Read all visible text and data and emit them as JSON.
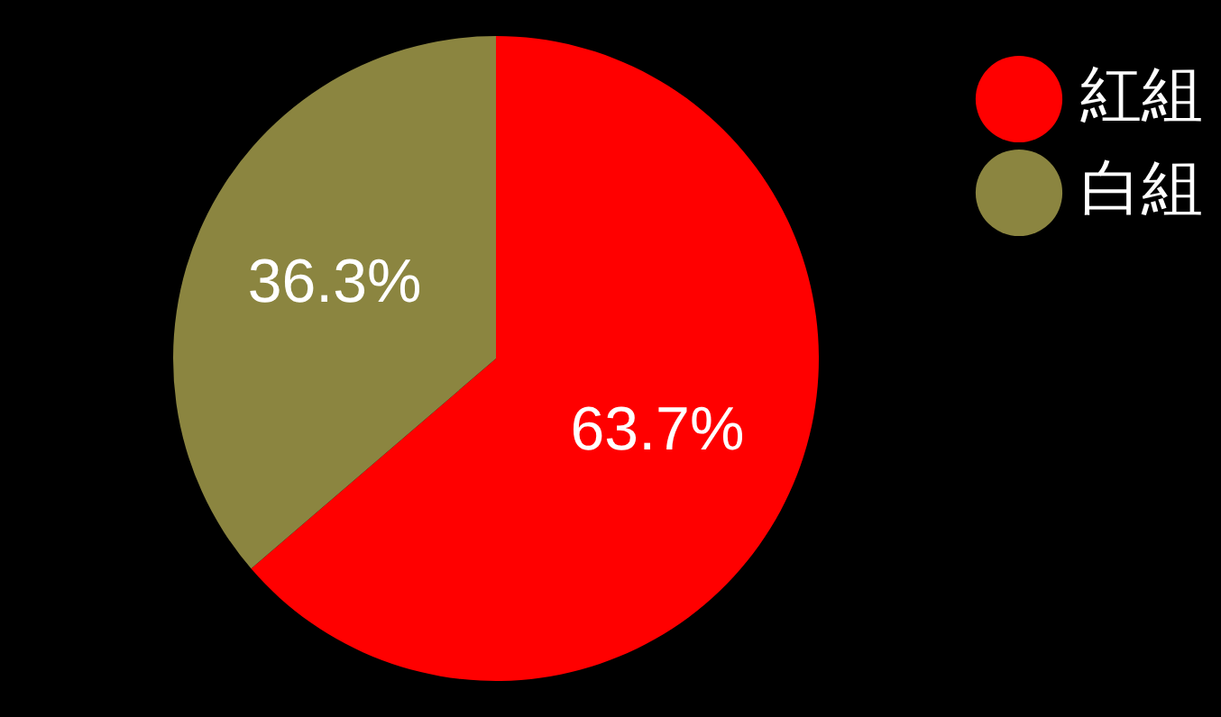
{
  "chart_data": {
    "type": "pie",
    "categories": [
      "紅組",
      "白組"
    ],
    "values": [
      63.7,
      36.3
    ],
    "colors": [
      "#ff0000",
      "#8b8540"
    ],
    "legend": "top right",
    "data_labels": true,
    "value_labels": [
      "63.7%",
      "36.3%"
    ]
  }
}
